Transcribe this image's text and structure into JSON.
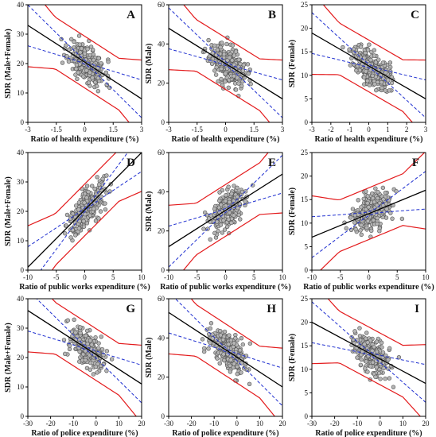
{
  "colors": {
    "fit": "#000000",
    "prediction": "#e31a1c",
    "confidence": "#1f2fd0",
    "point_fill": "#b5b5b5",
    "point_stroke": "#555555"
  },
  "chart_data": [
    {
      "type": "scatter",
      "letter": "A",
      "xlabel": "Ratio of health expenditure (%)",
      "ylabel": "SDR (Male+Female)",
      "xlim": [
        -3,
        3
      ],
      "ylim": [
        0,
        40
      ],
      "xticks": [
        -3,
        -1.5,
        0,
        1.5,
        3
      ],
      "yticks": [
        0,
        10,
        20,
        30,
        40
      ],
      "fit": [
        [
          -3,
          33
        ],
        [
          3,
          8
        ]
      ],
      "seed": 11
    },
    {
      "type": "scatter",
      "letter": "B",
      "xlabel": "Ratio of health expenditure (%)",
      "ylabel": "SDR (Male)",
      "xlim": [
        -3,
        3
      ],
      "ylim": [
        0,
        60
      ],
      "xticks": [
        -3,
        -1.5,
        0,
        1.5,
        3
      ],
      "yticks": [
        0,
        20,
        40,
        60
      ],
      "fit": [
        [
          -3,
          48
        ],
        [
          3,
          12
        ]
      ],
      "seed": 23
    },
    {
      "type": "scatter",
      "letter": "C",
      "xlabel": "Ratio of health expenditure (%)",
      "ylabel": "SDR (Female)",
      "xlim": [
        -3,
        3
      ],
      "ylim": [
        0,
        25
      ],
      "xticks": [
        -3,
        -2,
        -1,
        0,
        1,
        2,
        3
      ],
      "yticks": [
        0,
        5,
        10,
        15,
        20,
        25
      ],
      "fit": [
        [
          -3,
          19
        ],
        [
          3,
          5
        ]
      ],
      "seed": 37
    },
    {
      "type": "scatter",
      "letter": "D",
      "xlabel": "Ratio of public works expenditure (%)",
      "ylabel": "SDR (Male+Female)",
      "xlim": [
        -10,
        10
      ],
      "ylim": [
        0,
        40
      ],
      "xticks": [
        -10,
        -5,
        0,
        5,
        10
      ],
      "yticks": [
        0,
        10,
        20,
        30,
        40
      ],
      "fit": [
        [
          -10,
          1
        ],
        [
          10,
          40
        ]
      ],
      "seed": 41
    },
    {
      "type": "scatter",
      "letter": "E",
      "xlabel": "Ratio of public works expenditure (%)",
      "ylabel": "SDR (Male)",
      "xlim": [
        -10,
        10
      ],
      "ylim": [
        0,
        60
      ],
      "xticks": [
        -10,
        -5,
        0,
        5,
        10
      ],
      "yticks": [
        0,
        20,
        40,
        60
      ],
      "fit": [
        [
          -10,
          12
        ],
        [
          10,
          49
        ]
      ],
      "seed": 53
    },
    {
      "type": "scatter",
      "letter": "F",
      "xlabel": "Ratio of public works expenditure (%)",
      "ylabel": "SDR (Female)",
      "xlim": [
        -10,
        10
      ],
      "ylim": [
        0,
        25
      ],
      "xticks": [
        -10,
        -5,
        0,
        5,
        10
      ],
      "yticks": [
        0,
        5,
        10,
        15,
        20,
        25
      ],
      "fit": [
        [
          -10,
          7
        ],
        [
          10,
          17
        ]
      ],
      "seed": 67
    },
    {
      "type": "scatter",
      "letter": "G",
      "xlabel": "Ratio of police expenditure (%)",
      "ylabel": "SDR (Male+Female)",
      "xlim": [
        -30,
        20
      ],
      "ylim": [
        0,
        40
      ],
      "xticks": [
        -30,
        -20,
        -10,
        0,
        10,
        20
      ],
      "yticks": [
        0,
        10,
        20,
        30,
        40
      ],
      "fit": [
        [
          -30,
          36
        ],
        [
          20,
          11
        ]
      ],
      "seed": 71
    },
    {
      "type": "scatter",
      "letter": "H",
      "xlabel": "Ratio of police expenditure (%)",
      "ylabel": "SDR (Male)",
      "xlim": [
        -30,
        20
      ],
      "ylim": [
        0,
        60
      ],
      "xticks": [
        -30,
        -20,
        -10,
        0,
        10,
        20
      ],
      "yticks": [
        0,
        20,
        40,
        60
      ],
      "fit": [
        [
          -30,
          53
        ],
        [
          20,
          15
        ]
      ],
      "seed": 83
    },
    {
      "type": "scatter",
      "letter": "I",
      "xlabel": "Ratio of police expenditure (%)",
      "ylabel": "SDR (Female)",
      "xlim": [
        -30,
        20
      ],
      "ylim": [
        0,
        25
      ],
      "xticks": [
        -30,
        -20,
        -10,
        0,
        10,
        20
      ],
      "yticks": [
        0,
        5,
        10,
        15,
        20,
        25
      ],
      "fit": [
        [
          -30,
          20
        ],
        [
          20,
          7
        ]
      ],
      "seed": 97
    }
  ]
}
